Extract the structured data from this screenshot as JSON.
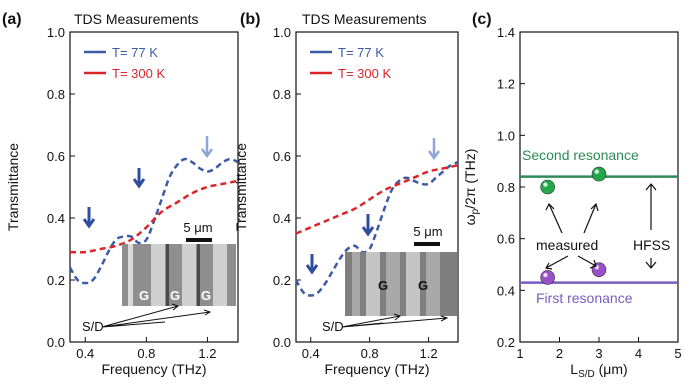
{
  "colors": {
    "t77": "#3c5aa6",
    "t300": "#d9262b",
    "arrow_blue": "#2f4f9e",
    "arrow_light": "#8ca6d9",
    "green_line": "#2e8b57",
    "purple_line": "#7a5cc0",
    "green_text": "#2e8b57",
    "purple_text": "#7a5cc0",
    "green_point": "#22a84a",
    "purple_point": "#9b4fc9"
  },
  "panels": [
    {
      "label": "(a)",
      "title": "TDS Measurements"
    },
    {
      "label": "(b)",
      "title": "TDS Measurements"
    },
    {
      "label": "(c)"
    }
  ],
  "chart_data": [
    {
      "type": "line",
      "panel": "(a)",
      "title": "TDS Measurements",
      "xlabel": "Frequency (THz)",
      "ylabel": "Transmittance",
      "xlim": [
        0.3,
        1.4
      ],
      "ylim": [
        0.0,
        1.0
      ],
      "xticks": [
        "0.4",
        "0.8",
        "1.2"
      ],
      "yticks": [
        "0.0",
        "0.2",
        "0.4",
        "0.6",
        "0.8",
        "1.0"
      ],
      "legend": [
        "T= 77 K",
        "T= 300 K"
      ],
      "series": [
        {
          "name": "T= 77 K",
          "style": "dashed",
          "color": "#3c5aa6",
          "x": [
            0.3,
            0.35,
            0.4,
            0.45,
            0.5,
            0.55,
            0.6,
            0.65,
            0.7,
            0.75,
            0.8,
            0.85,
            0.9,
            0.95,
            1.0,
            1.05,
            1.1,
            1.15,
            1.2,
            1.25,
            1.3,
            1.35,
            1.4
          ],
          "y": [
            0.24,
            0.2,
            0.19,
            0.2,
            0.24,
            0.29,
            0.33,
            0.34,
            0.34,
            0.32,
            0.33,
            0.39,
            0.46,
            0.53,
            0.57,
            0.59,
            0.58,
            0.56,
            0.55,
            0.56,
            0.58,
            0.59,
            0.58
          ]
        },
        {
          "name": "T= 300 K",
          "style": "dashed",
          "color": "#d9262b",
          "x": [
            0.3,
            0.4,
            0.5,
            0.6,
            0.7,
            0.8,
            0.9,
            1.0,
            1.1,
            1.2,
            1.3,
            1.4
          ],
          "y": [
            0.29,
            0.29,
            0.3,
            0.31,
            0.33,
            0.37,
            0.42,
            0.45,
            0.48,
            0.5,
            0.51,
            0.52
          ]
        }
      ],
      "annotations": {
        "inset_gate_label": "G",
        "inset_scale": "5 μm",
        "sd_label": "S/D"
      }
    },
    {
      "type": "line",
      "panel": "(b)",
      "title": "TDS Measurements",
      "xlabel": "Frequency (THz)",
      "ylabel": "Transmittance",
      "xlim": [
        0.3,
        1.4
      ],
      "ylim": [
        0.0,
        1.0
      ],
      "xticks": [
        "0.4",
        "0.8",
        "1.2"
      ],
      "yticks": [
        "0.0",
        "0.2",
        "0.4",
        "0.6",
        "0.8",
        "1.0"
      ],
      "legend": [
        "T= 77 K",
        "T= 300 K"
      ],
      "series": [
        {
          "name": "T= 77 K",
          "style": "dashed",
          "color": "#3c5aa6",
          "x": [
            0.3,
            0.35,
            0.4,
            0.45,
            0.5,
            0.55,
            0.6,
            0.65,
            0.7,
            0.75,
            0.8,
            0.85,
            0.9,
            0.95,
            1.0,
            1.05,
            1.1,
            1.15,
            1.2,
            1.25,
            1.3,
            1.35,
            1.4
          ],
          "y": [
            0.2,
            0.16,
            0.15,
            0.16,
            0.19,
            0.23,
            0.27,
            0.3,
            0.31,
            0.29,
            0.3,
            0.36,
            0.43,
            0.49,
            0.52,
            0.53,
            0.52,
            0.51,
            0.51,
            0.53,
            0.55,
            0.57,
            0.58
          ]
        },
        {
          "name": "T= 300 K",
          "style": "dashed",
          "color": "#d9262b",
          "x": [
            0.3,
            0.4,
            0.5,
            0.6,
            0.7,
            0.8,
            0.9,
            1.0,
            1.1,
            1.2,
            1.3,
            1.4
          ],
          "y": [
            0.35,
            0.37,
            0.39,
            0.41,
            0.43,
            0.46,
            0.49,
            0.51,
            0.53,
            0.55,
            0.56,
            0.57
          ]
        }
      ],
      "annotations": {
        "inset_gate_label": "G",
        "inset_scale": "5 μm",
        "sd_label": "S/D"
      }
    },
    {
      "type": "scatter",
      "panel": "(c)",
      "xlabel": "L_S/D (μm)",
      "ylabel": "ω_p/2π (THz)",
      "xlim": [
        1,
        5
      ],
      "ylim": [
        0.2,
        1.4
      ],
      "xticks": [
        "1",
        "2",
        "3",
        "4",
        "5"
      ],
      "yticks": [
        "0.2",
        "0.4",
        "0.6",
        "0.8",
        "1.0",
        "1.2",
        "1.4"
      ],
      "lines": [
        {
          "name": "Second resonance",
          "y": 0.84,
          "color": "#2e8b57"
        },
        {
          "name": "First resonance",
          "y": 0.43,
          "color": "#7a5cc0"
        }
      ],
      "series": [
        {
          "name": "measured",
          "color": "#22a84a",
          "x": [
            1.7,
            3.0
          ],
          "y": [
            0.8,
            0.85
          ]
        },
        {
          "name": "measured",
          "color": "#9b4fc9",
          "x": [
            1.7,
            3.0
          ],
          "y": [
            0.45,
            0.48
          ]
        }
      ],
      "annotations": {
        "measured_label": "measured",
        "hfss_label": "HFSS",
        "second_label": "Second resonance",
        "first_label": "First resonance"
      }
    }
  ]
}
